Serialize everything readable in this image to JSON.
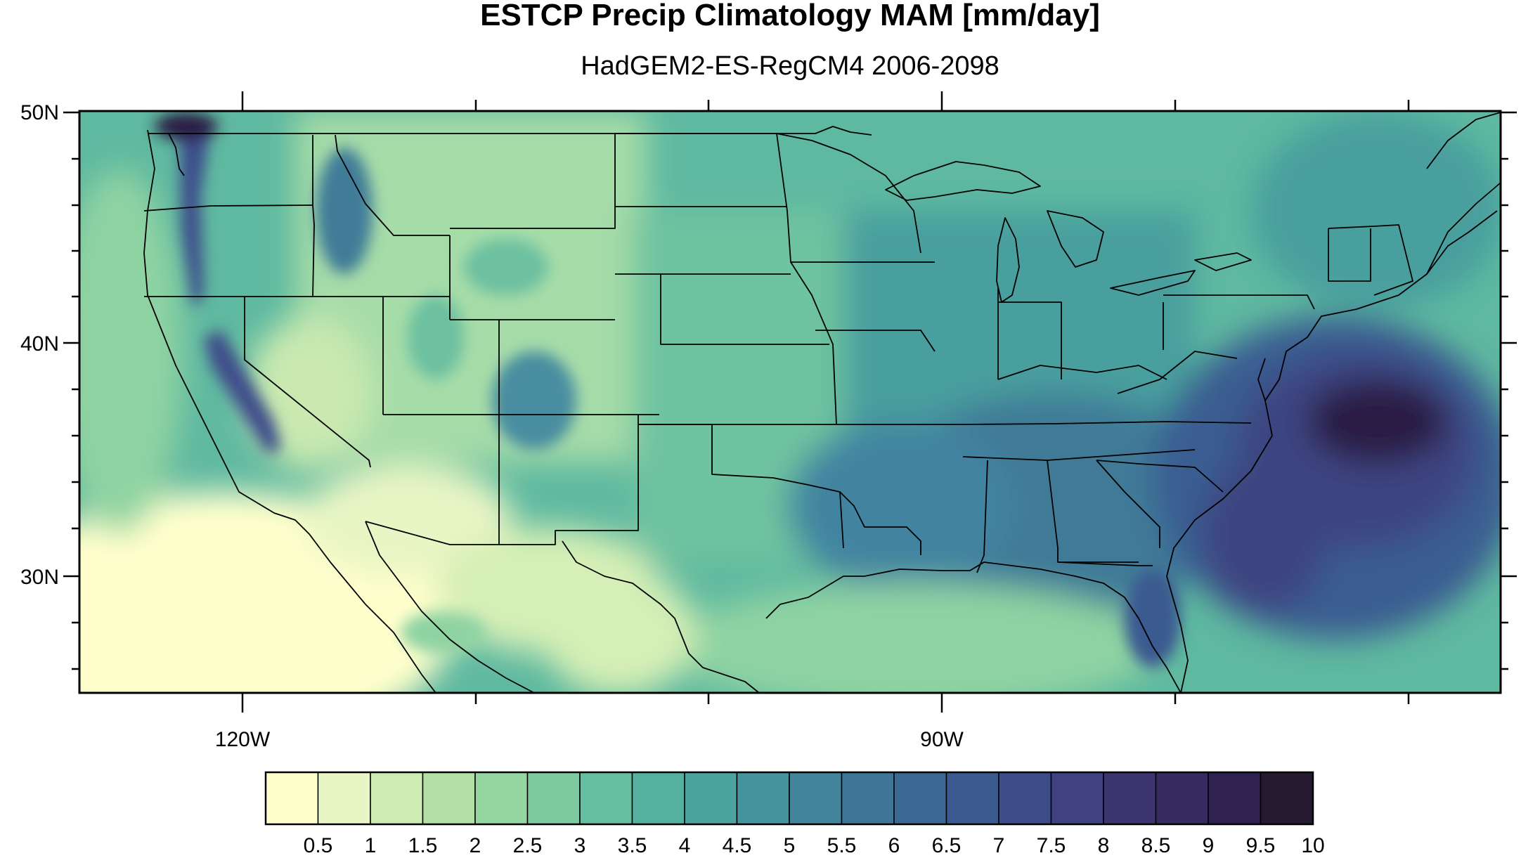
{
  "title": "ESTCP Precip Climatology MAM [mm/day]",
  "subtitle": "HadGEM2-ES-RegCM4 2006-2098",
  "axes": {
    "y_labels": [
      "50N",
      "40N",
      "30N"
    ],
    "x_labels": [
      "120W",
      "90W"
    ]
  },
  "colorbar": {
    "levels": [
      "0.5",
      "1",
      "1.5",
      "2",
      "2.5",
      "3",
      "3.5",
      "4",
      "4.5",
      "5",
      "5.5",
      "6",
      "6.5",
      "7",
      "7.5",
      "8",
      "8.5",
      "9",
      "9.5",
      "10"
    ],
    "colors": [
      "#ffffcc",
      "#e8f5c4",
      "#cdebb2",
      "#b2e0a6",
      "#95d5a0",
      "#7dcaa0",
      "#65bea0",
      "#54b09f",
      "#4ba29e",
      "#45939c",
      "#42849a",
      "#3f7697",
      "#3c6894",
      "#3a5a90",
      "#3d4c8a",
      "#3f4180",
      "#3d3570",
      "#372a60",
      "#302250",
      "#261a30"
    ]
  },
  "map": {
    "region": "Contiguous United States",
    "lon_range": [
      -127,
      -66
    ],
    "lat_range": [
      25,
      50
    ],
    "colors": {
      "land_base": "#7dcaa0",
      "ocean_base": "#54b09f",
      "dry_desert": "#ffffcc",
      "wet_atlantic": "#261a30"
    }
  }
}
